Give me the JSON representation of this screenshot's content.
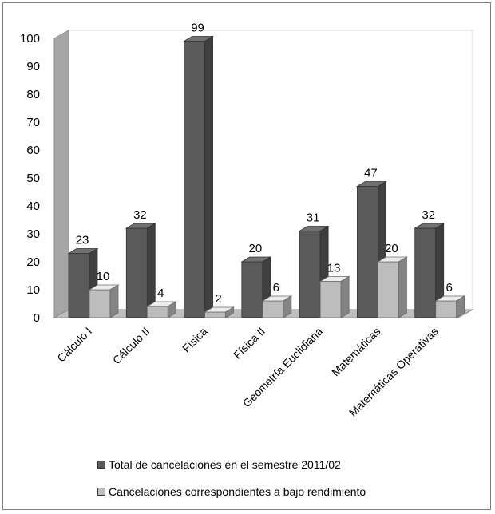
{
  "chart_data": {
    "type": "bar",
    "title": "",
    "xlabel": "",
    "ylabel": "",
    "ylim": [
      0,
      100
    ],
    "yticks": [
      "0",
      "10",
      "20",
      "30",
      "40",
      "50",
      "60",
      "70",
      "80",
      "90",
      "100"
    ],
    "grid": false,
    "legend_position": "bottom",
    "categories": [
      "Cálculo I",
      "Cálculo II",
      "Física",
      "Física II",
      "Geometría Euclidiana",
      "Matemáticas",
      "Matemáticas Operativas"
    ],
    "series": [
      {
        "name": "Total de cancelaciones en el semestre 2011/02",
        "values": [
          23,
          32,
          99,
          20,
          31,
          47,
          32
        ],
        "labels": [
          "23",
          "32",
          "99",
          "20",
          "31",
          "47",
          "32"
        ],
        "color": "#5a5a5a"
      },
      {
        "name": "Cancelaciones correspondientes a bajo rendimiento",
        "values": [
          10,
          4,
          2,
          6,
          13,
          20,
          6
        ],
        "labels": [
          "10",
          "4",
          "2",
          "6",
          "13",
          "20",
          "6"
        ],
        "color": "#bdbdbd"
      }
    ]
  }
}
